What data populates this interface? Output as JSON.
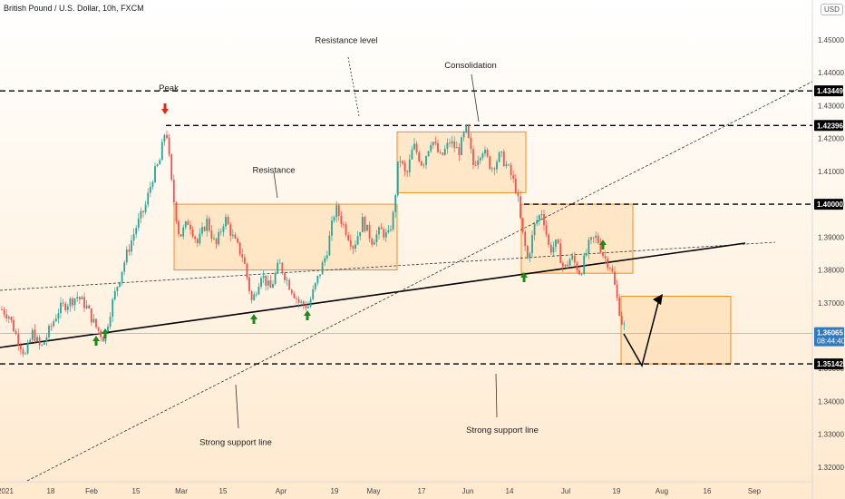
{
  "header": {
    "title": "British Pound / U.S. Dollar, 10h, FXCM",
    "currency": "USD"
  },
  "colors": {
    "up": "#26a69a",
    "down": "#ef5350",
    "box_fill": "#ffd9a8",
    "box_stroke": "#f28d24",
    "level_line": "#000000",
    "current_line": "#8fb4d9",
    "current_label_bg": "#2f7bbf",
    "arrow_up": "#1b8a1b",
    "arrow_down": "#e0261b"
  },
  "chart_data": {
    "type": "candlestick",
    "symbol": "GBPUSD",
    "timeframe": "10h",
    "ylim": [
      1.315,
      1.458
    ],
    "y_ticks": [
      "1.45000",
      "1.44000",
      "1.43000",
      "1.42000",
      "1.41000",
      "1.40000",
      "1.39000",
      "1.38000",
      "1.37000",
      "1.36000",
      "1.35000",
      "1.34000",
      "1.33000",
      "1.32000"
    ],
    "x_ticks": [
      "2021",
      "18",
      "Feb",
      "15",
      "Mar",
      "15",
      "Apr",
      "19",
      "May",
      "17",
      "Jun",
      "14",
      "Jul",
      "19",
      "Aug",
      "16",
      "Sep"
    ],
    "path": [
      [
        0,
        1.3685
      ],
      [
        10,
        1.366
      ],
      [
        18,
        1.36
      ],
      [
        28,
        1.354
      ],
      [
        36,
        1.361
      ],
      [
        45,
        1.356
      ],
      [
        55,
        1.362
      ],
      [
        65,
        1.368
      ],
      [
        75,
        1.37
      ],
      [
        85,
        1.372
      ],
      [
        95,
        1.369
      ],
      [
        105,
        1.363
      ],
      [
        115,
        1.359
      ],
      [
        122,
        1.368
      ],
      [
        130,
        1.376
      ],
      [
        140,
        1.385
      ],
      [
        150,
        1.393
      ],
      [
        160,
        1.399
      ],
      [
        168,
        1.408
      ],
      [
        176,
        1.413
      ],
      [
        183,
        1.424
      ],
      [
        190,
        1.404
      ],
      [
        198,
        1.39
      ],
      [
        208,
        1.395
      ],
      [
        218,
        1.388
      ],
      [
        228,
        1.395
      ],
      [
        238,
        1.387
      ],
      [
        248,
        1.396
      ],
      [
        258,
        1.389
      ],
      [
        268,
        1.384
      ],
      [
        278,
        1.37
      ],
      [
        288,
        1.379
      ],
      [
        298,
        1.374
      ],
      [
        308,
        1.382
      ],
      [
        318,
        1.376
      ],
      [
        330,
        1.37
      ],
      [
        340,
        1.369
      ],
      [
        350,
        1.377
      ],
      [
        360,
        1.385
      ],
      [
        370,
        1.399
      ],
      [
        380,
        1.393
      ],
      [
        390,
        1.387
      ],
      [
        400,
        1.395
      ],
      [
        410,
        1.389
      ],
      [
        420,
        1.392
      ],
      [
        428,
        1.39
      ],
      [
        434,
        1.397
      ],
      [
        440,
        1.415
      ],
      [
        448,
        1.408
      ],
      [
        456,
        1.418
      ],
      [
        466,
        1.412
      ],
      [
        476,
        1.42
      ],
      [
        486,
        1.414
      ],
      [
        496,
        1.419
      ],
      [
        506,
        1.416
      ],
      [
        514,
        1.423
      ],
      [
        522,
        1.412
      ],
      [
        532,
        1.417
      ],
      [
        542,
        1.411
      ],
      [
        552,
        1.415
      ],
      [
        562,
        1.41
      ],
      [
        570,
        1.404
      ],
      [
        575,
        1.393
      ],
      [
        582,
        1.383
      ],
      [
        590,
        1.394
      ],
      [
        598,
        1.398
      ],
      [
        606,
        1.386
      ],
      [
        614,
        1.388
      ],
      [
        622,
        1.38
      ],
      [
        630,
        1.384
      ],
      [
        640,
        1.379
      ],
      [
        650,
        1.388
      ],
      [
        658,
        1.39
      ],
      [
        666,
        1.384
      ],
      [
        674,
        1.381
      ],
      [
        680,
        1.372
      ],
      [
        686,
        1.364
      ],
      [
        692,
        1.361
      ]
    ],
    "levels": [
      {
        "price": 1.43449,
        "label": "1.43449",
        "x_start": 0
      },
      {
        "price": 1.42396,
        "label": "1.42396",
        "x_start": 183
      },
      {
        "price": 1.4,
        "label": "1.40000",
        "x_start": 578
      },
      {
        "price": 1.35142,
        "label": "1.35142",
        "x_start": 0
      }
    ],
    "current_price": {
      "price": 1.36065,
      "label": "1.36065",
      "countdown": "08:44:40"
    },
    "annotations": [
      {
        "text": "Peak",
        "x": 186,
        "y": 1.4345
      },
      {
        "text": "Resistance level",
        "x": 382,
        "y": 1.449
      },
      {
        "text": "Consolidation",
        "x": 519,
        "y": 1.4415
      },
      {
        "text": "Resistance",
        "x": 302,
        "y": 1.4095
      },
      {
        "text": "Strong support line",
        "x": 260,
        "y": 1.3268
      },
      {
        "text": "Strong support line",
        "x": 554,
        "y": 1.3305
      }
    ]
  }
}
